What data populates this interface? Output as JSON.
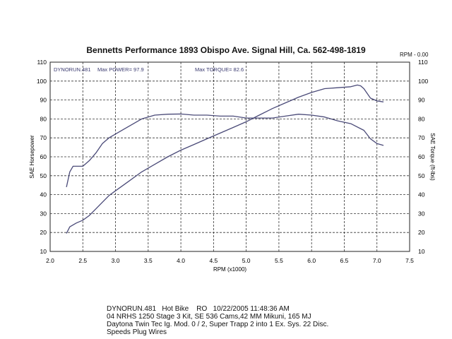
{
  "header": {
    "title": "Bennetts Performance  1893 Obispo Ave.  Signal Hill, Ca. 562-498-1819",
    "rpm_note": "RPM - 0.00"
  },
  "caption": {
    "lines": [
      "DYNORUN.481   Hot Bike    RO   10/22/2005 11:48:36 AM",
      "04 NRHS 1250 Stage 3 Kit, SE 536 Cams,42 MM Mikuni, 165 MJ",
      "Daytona Twin Tec Ig. Mod. 0 / 2, Super Trapp 2 into 1 Ex. Sys. 22 Disc.",
      "Speeds Plug Wires"
    ]
  },
  "chart_data": {
    "type": "line",
    "title": "Bennetts Performance  1893 Obispo Ave.  Signal Hill, Ca. 562-498-1819",
    "xlabel": "RPM (x1000)",
    "ylabel": "SAE Horsepower",
    "y2label": "SAE Torque (ft-lbs)",
    "xlim": [
      2.0,
      7.5
    ],
    "ylim": [
      10,
      110
    ],
    "y2lim": [
      10,
      110
    ],
    "x_ticks": [
      "2.0",
      "2.5",
      "3.0",
      "3.5",
      "4.0",
      "4.5",
      "5.0",
      "5.5",
      "6.0",
      "6.5",
      "7.0",
      "7.5"
    ],
    "y_ticks": [
      "10",
      "20",
      "30",
      "40",
      "50",
      "60",
      "70",
      "80",
      "90",
      "100",
      "110"
    ],
    "grid": true,
    "annotations": {
      "run": "DYNORUN.481",
      "max_power": "Max POWER= 97.9",
      "max_torque": "Max TORQUE= 82.6"
    },
    "series": [
      {
        "name": "SAE Horsepower",
        "axis": "left",
        "color": "#4a4a78",
        "x": [
          2.25,
          2.3,
          2.4,
          2.5,
          2.6,
          2.7,
          2.8,
          2.9,
          3.0,
          3.2,
          3.4,
          3.6,
          3.8,
          4.0,
          4.2,
          4.4,
          4.6,
          4.8,
          5.0,
          5.2,
          5.4,
          5.6,
          5.8,
          6.0,
          6.2,
          6.4,
          6.6,
          6.7,
          6.75,
          6.8,
          6.9,
          7.0,
          7.1
        ],
        "y": [
          19.5,
          23,
          25,
          26.5,
          29,
          32.5,
          36,
          39.5,
          42,
          47,
          52,
          56,
          60,
          63.5,
          66.5,
          69.5,
          72.5,
          75.5,
          78.5,
          82,
          85.5,
          88.5,
          91.5,
          94,
          96,
          96.5,
          97,
          97.9,
          97.5,
          96,
          91,
          89.5,
          89
        ]
      },
      {
        "name": "SAE Torque",
        "axis": "right",
        "color": "#4a4a78",
        "x": [
          2.25,
          2.3,
          2.35,
          2.4,
          2.5,
          2.6,
          2.7,
          2.8,
          2.9,
          3.0,
          3.2,
          3.4,
          3.6,
          3.8,
          4.0,
          4.2,
          4.4,
          4.6,
          4.8,
          5.0,
          5.2,
          5.4,
          5.6,
          5.8,
          6.0,
          6.2,
          6.4,
          6.6,
          6.8,
          6.9,
          7.0,
          7.1
        ],
        "y": [
          44,
          52,
          55,
          55,
          55,
          58,
          62,
          67,
          70,
          72,
          76,
          80,
          82,
          82.5,
          82.6,
          82,
          82,
          81.5,
          81.5,
          80.5,
          80.5,
          80.5,
          81.5,
          82.5,
          82,
          81,
          79,
          77.5,
          74,
          69.5,
          67,
          66
        ]
      }
    ]
  }
}
